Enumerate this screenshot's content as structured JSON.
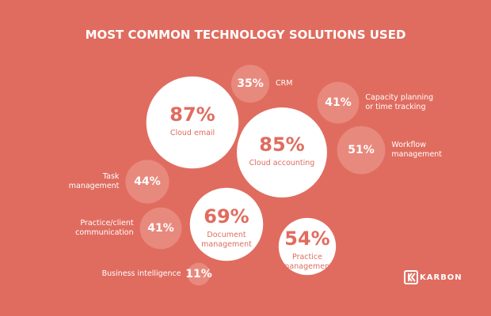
{
  "chart_data": {
    "type": "bubble",
    "title": "MOST COMMON TECHNOLOGY SOLUTIONS USED",
    "categories": [
      "Cloud email",
      "Cloud accounting",
      "Document management",
      "Practice management",
      "Workflow management",
      "Capacity planning or time tracking",
      "CRM",
      "Task management",
      "Practice/client communication",
      "Business intelligence"
    ],
    "values": [
      87,
      85,
      69,
      54,
      51,
      41,
      35,
      44,
      41,
      11
    ],
    "value_labels": [
      "87%",
      "85%",
      "69%",
      "54%",
      "51%",
      "41%",
      "35%",
      "44%",
      "41%",
      "11%"
    ],
    "colors": [
      "#ffffff",
      "#ffffff",
      "#ffffff",
      "#ffffff",
      "#e8897d",
      "#e8897d",
      "#e8897d",
      "#e8897d",
      "#e8897d",
      "#e8897d"
    ],
    "brand": "KARBON"
  }
}
